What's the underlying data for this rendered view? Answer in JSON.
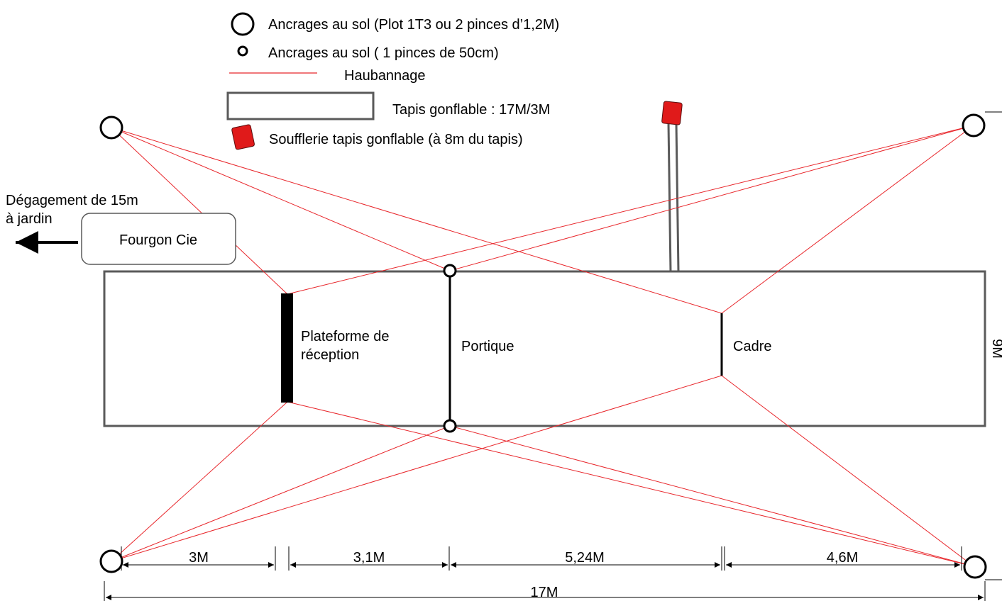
{
  "legend": {
    "big_anchor": "Ancrages au sol (Plot 1T3 ou 2 pinces d’1,2M)",
    "small_anchor": "Ancrages au sol ( 1 pinces de 50cm)",
    "guy_line": "Haubannage",
    "mat": "Tapis gonflable : 17M/3M",
    "blower": "Soufflerie tapis gonflable (à 8m du tapis)"
  },
  "clearance": {
    "line1": "Dégagement de 15m",
    "line2": "à jardin"
  },
  "van": {
    "label": "Fourgon Cie"
  },
  "platform": {
    "line1": "Plateforme de",
    "line2": "réception"
  },
  "portique": {
    "label": "Portique"
  },
  "cadre": {
    "label": "Cadre"
  },
  "side_dimension": "9M",
  "dimensions": {
    "seg1": "3M",
    "seg2": "3,1M",
    "seg3": "5,24M",
    "seg4": "4,6M",
    "total": "17M"
  },
  "colors": {
    "guy_line": "#e8262b",
    "blower": "#e01a1a",
    "outline": "#5a5a5a"
  }
}
